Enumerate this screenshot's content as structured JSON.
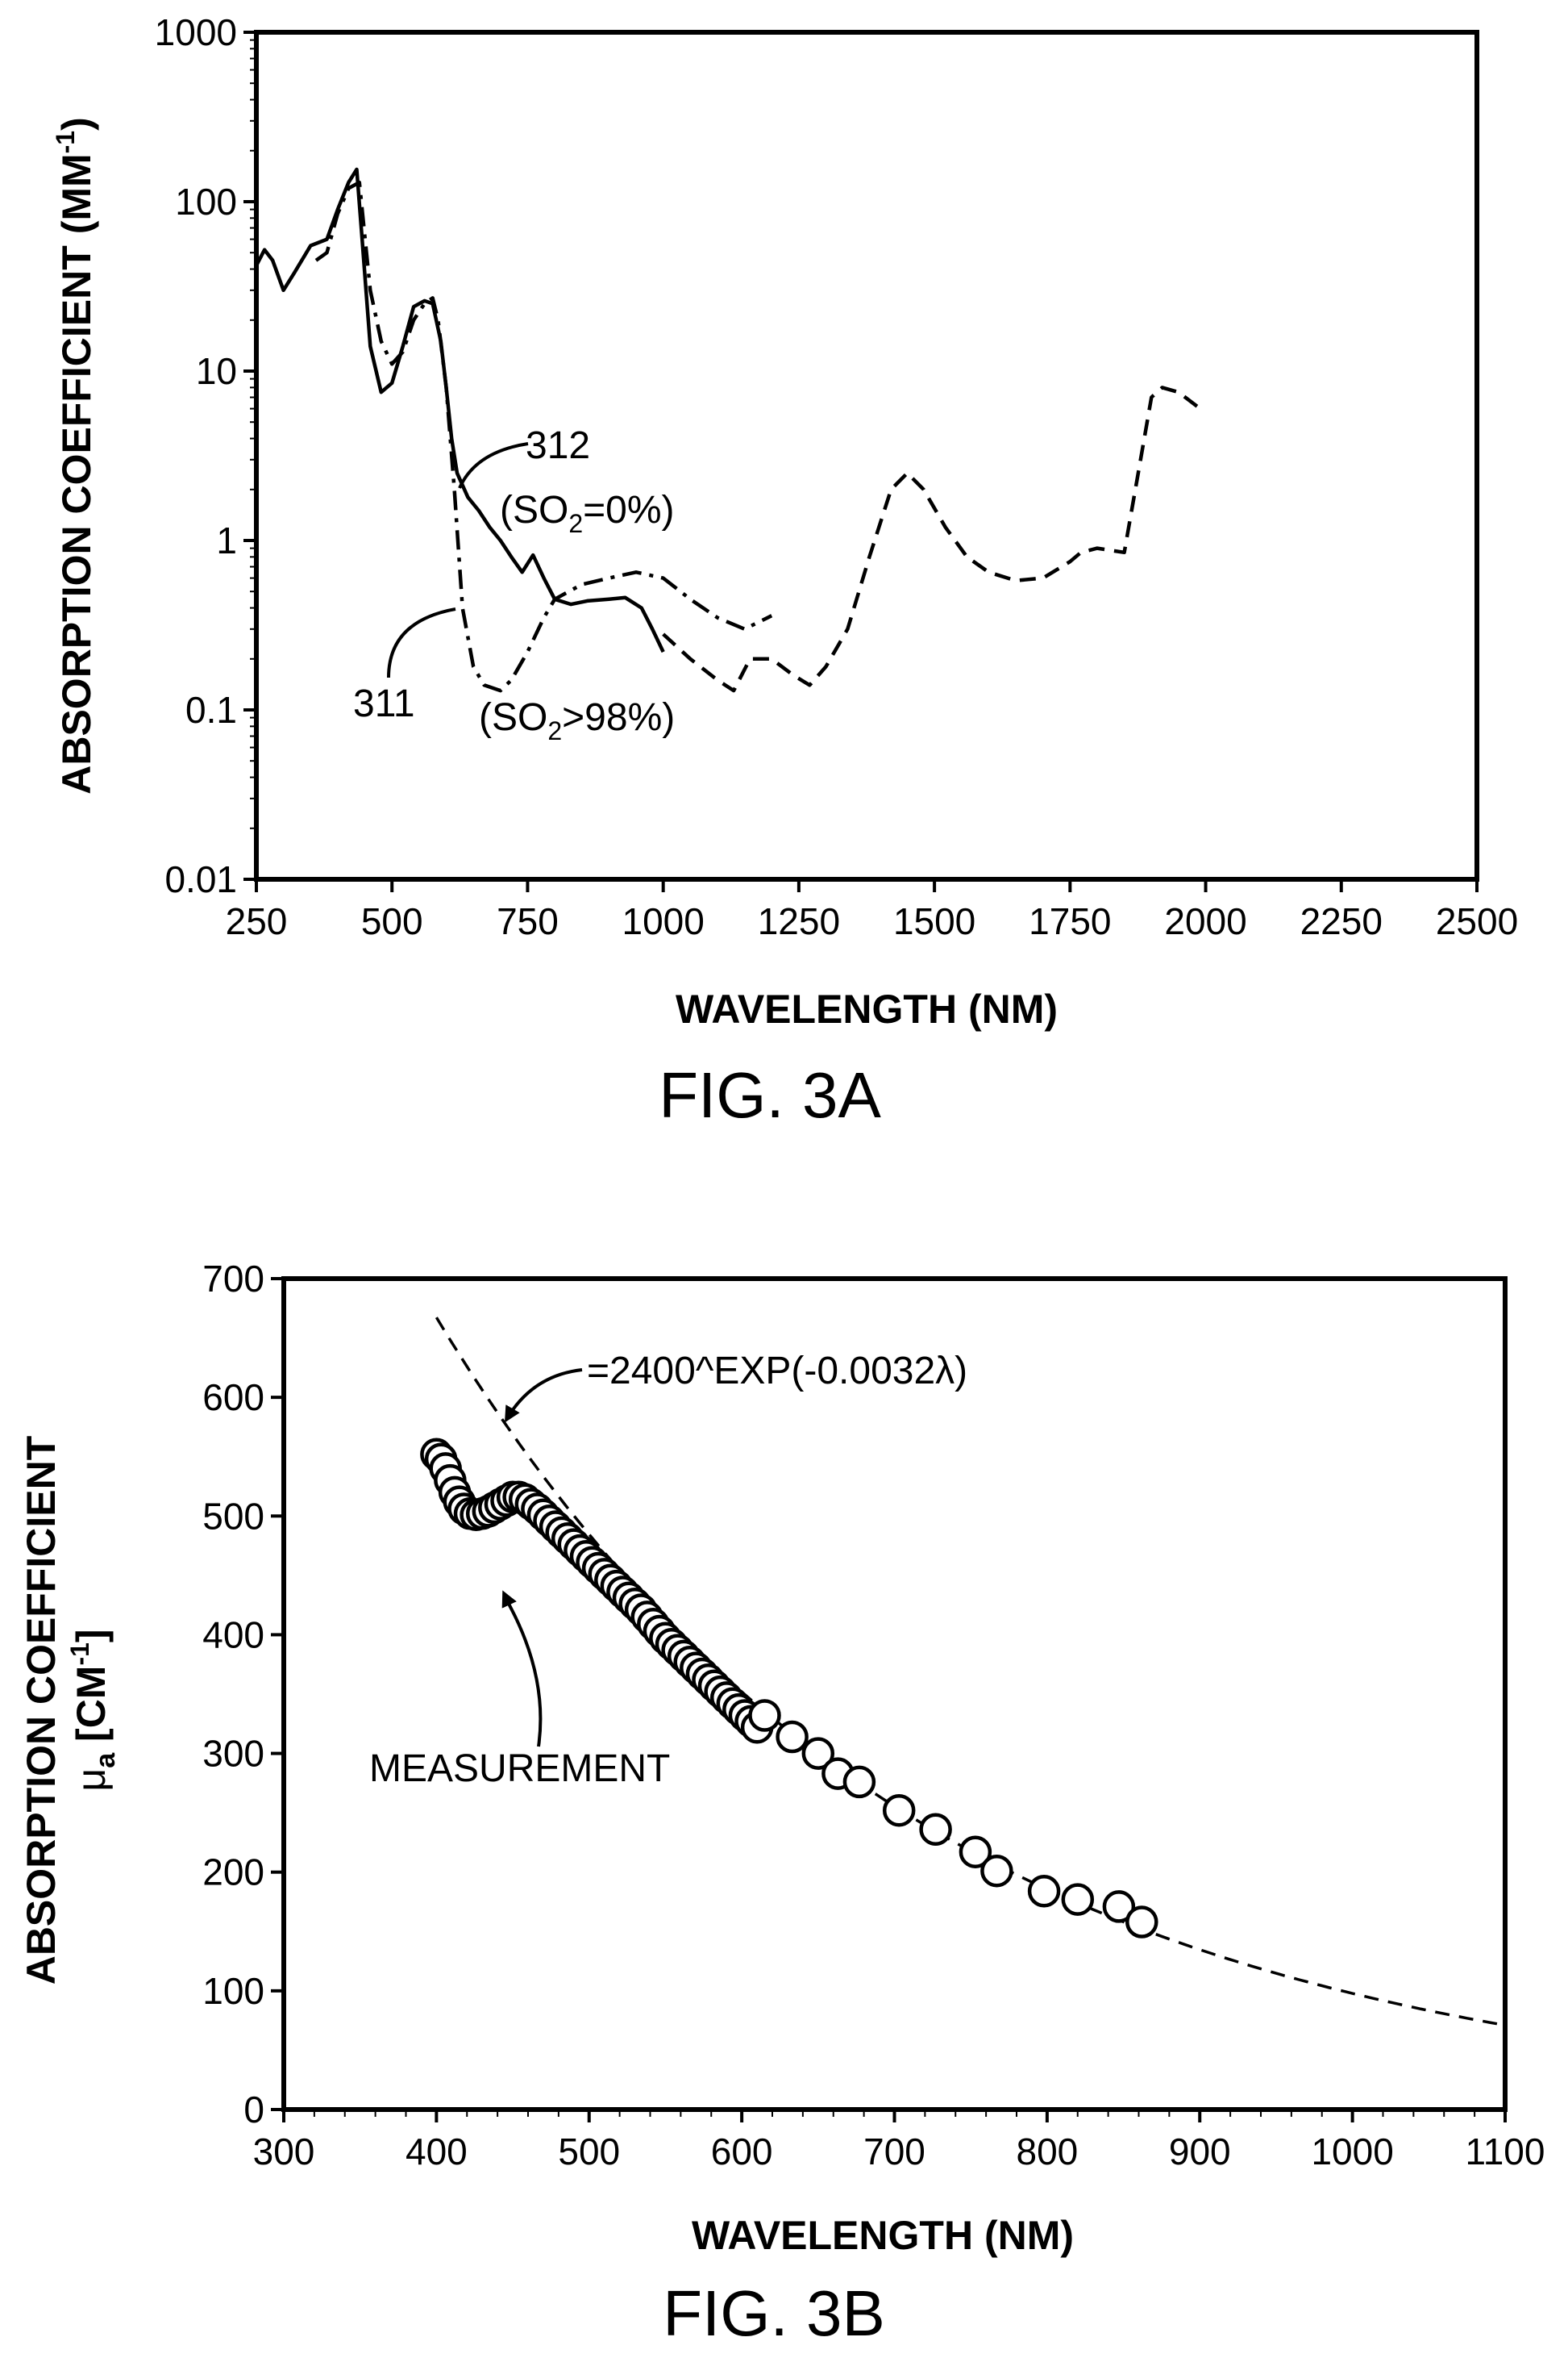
{
  "figures": [
    {
      "caption": "FIG. 3A"
    },
    {
      "caption": "FIG. 3B"
    }
  ],
  "chart_data": [
    {
      "type": "line",
      "xlabel": "WAVELENGTH (NM)",
      "ylabel": "ABSORPTION COEFFICIENT (MM-1)",
      "ylabel_parts": {
        "main": "ABSORPTION COEFFICIENT (MM",
        "sup": "-1",
        "close": ")"
      },
      "xlim": [
        250,
        2500
      ],
      "ylim": [
        0.01,
        1000
      ],
      "yscale": "log",
      "grid": false,
      "x_ticks": [
        250,
        500,
        750,
        1000,
        1250,
        1500,
        1750,
        2000,
        2250,
        2500
      ],
      "y_ticks": [
        0.01,
        0.1,
        1,
        10,
        100,
        1000
      ],
      "y_tick_labels": [
        "0.01",
        "0.1",
        "1",
        "10",
        "100",
        "1000"
      ],
      "series": [
        {
          "ref": "312",
          "annotation": {
            "ref": "312",
            "pre": "(SO",
            "sub": "2",
            "post": "=0%)"
          },
          "style": "solid",
          "x": [
            250,
            265,
            280,
            300,
            320,
            350,
            380,
            400,
            420,
            435,
            445,
            460,
            480,
            500,
            520,
            540,
            560,
            575,
            590,
            600,
            610,
            620,
            640,
            660,
            680,
            700,
            720,
            740,
            760,
            780,
            800,
            830,
            860,
            900,
            930,
            960,
            980,
            1000
          ],
          "y": [
            42,
            52,
            45,
            30,
            38,
            55,
            60,
            90,
            130,
            155,
            60,
            14,
            7.5,
            8.5,
            14,
            24,
            26,
            25,
            15,
            8,
            4,
            2.5,
            1.8,
            1.5,
            1.2,
            1.0,
            0.8,
            0.65,
            0.82,
            0.6,
            0.45,
            0.42,
            0.44,
            0.45,
            0.46,
            0.4,
            0.3,
            0.22
          ]
        },
        {
          "ref": "311",
          "annotation": {
            "ref": "311",
            "pre": "(SO",
            "sub": "2",
            "post": ">98%)"
          },
          "style": "dash-dot",
          "x": [
            360,
            380,
            400,
            420,
            440,
            460,
            480,
            500,
            520,
            540,
            560,
            575,
            585,
            600,
            615,
            630,
            650,
            670,
            700,
            720,
            750,
            780,
            800,
            850,
            900,
            950,
            1000,
            1050,
            1100,
            1150,
            1200
          ],
          "y": [
            45,
            50,
            85,
            120,
            130,
            30,
            15,
            11,
            13,
            20,
            25,
            27,
            20,
            8,
            2,
            0.4,
            0.18,
            0.14,
            0.13,
            0.15,
            0.22,
            0.35,
            0.45,
            0.55,
            0.6,
            0.65,
            0.6,
            0.45,
            0.35,
            0.3,
            0.36
          ]
        },
        {
          "style": "dashed",
          "x": [
            1000,
            1050,
            1100,
            1130,
            1160,
            1200,
            1240,
            1270,
            1300,
            1340,
            1380,
            1420,
            1450,
            1480,
            1520,
            1560,
            1600,
            1650,
            1700,
            1750,
            1770,
            1800,
            1850,
            1880,
            1900,
            1920,
            1950,
            1990
          ],
          "y": [
            0.28,
            0.2,
            0.15,
            0.13,
            0.2,
            0.2,
            0.16,
            0.14,
            0.18,
            0.3,
            0.8,
            2.0,
            2.5,
            2.0,
            1.2,
            0.8,
            0.65,
            0.58,
            0.6,
            0.75,
            0.85,
            0.9,
            0.85,
            3,
            7,
            8,
            7.5,
            6
          ]
        }
      ]
    },
    {
      "type": "scatter",
      "xlabel": "WAVELENGTH (NM)",
      "ylabel": "ABSORPTION COEFFICIENT μa [CM-1]",
      "ylabel_line1": "ABSORPTION COEFFICIENT",
      "ylabel_line2": {
        "mu": "μ",
        "sub": "a",
        "pre": " [CM",
        "sup": "-1",
        "post": "]"
      },
      "xlim": [
        300,
        1100
      ],
      "ylim": [
        0,
        700
      ],
      "grid": false,
      "x_ticks": [
        300,
        400,
        500,
        600,
        700,
        800,
        900,
        1000,
        1100
      ],
      "y_ticks": [
        0,
        100,
        200,
        300,
        400,
        500,
        600,
        700
      ],
      "series": [
        {
          "name": "MEASUREMENT",
          "style": "open-circle",
          "x": [
            400,
            403,
            406,
            409,
            412,
            415,
            418,
            422,
            426,
            430,
            434,
            438,
            442,
            446,
            450,
            454,
            458,
            462,
            466,
            470,
            474,
            478,
            482,
            486,
            490,
            494,
            498,
            502,
            506,
            510,
            514,
            518,
            522,
            526,
            530,
            534,
            538,
            542,
            546,
            550,
            554,
            558,
            562,
            566,
            570,
            574,
            578,
            582,
            586,
            590,
            594,
            598,
            602,
            606,
            610,
            615,
            633,
            650,
            663,
            677,
            703,
            727,
            753,
            767,
            798,
            820,
            847,
            862
          ],
          "y": [
            552,
            548,
            540,
            530,
            520,
            512,
            506,
            502,
            501,
            502,
            504,
            507,
            510,
            513,
            516,
            516,
            514,
            510,
            506,
            501,
            496,
            491,
            486,
            481,
            476,
            471,
            466,
            461,
            456,
            451,
            446,
            441,
            436,
            431,
            426,
            421,
            415,
            409,
            403,
            397,
            392,
            387,
            382,
            377,
            372,
            367,
            362,
            357,
            352,
            347,
            342,
            337,
            332,
            327,
            322,
            332,
            314,
            300,
            283,
            276,
            252,
            236,
            217,
            201,
            184,
            177,
            171,
            158
          ]
        },
        {
          "name": "=2400^EXP(-0.0032λ)",
          "style": "dashed",
          "fit": {
            "a": 2400,
            "b": -0.0032
          }
        }
      ],
      "annotations": [
        "=2400^EXP(-0.0032λ)",
        "MEASUREMENT"
      ]
    }
  ]
}
